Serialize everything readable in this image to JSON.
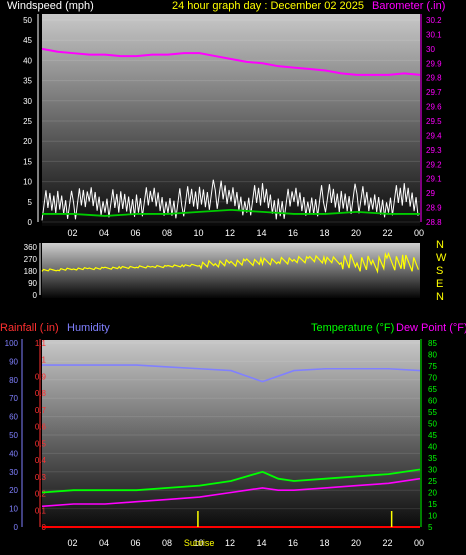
{
  "title": "24 hour graph day : December 02 2025",
  "colors": {
    "background": "#000000",
    "wind": "#ffffff",
    "wind_avg": "#00cc00",
    "barometer": "#ff00ff",
    "direction": "#ffff00",
    "rainfall": "#ff0000",
    "humidity": "#8080ff",
    "temperature": "#00ff00",
    "dewpoint": "#ff00ff",
    "title": "#ffff00"
  },
  "x_ticks": [
    "02",
    "04",
    "06",
    "08",
    "10",
    "12",
    "14",
    "16",
    "18",
    "20",
    "22",
    "00"
  ],
  "chart_data": [
    {
      "type": "line",
      "panel": "wind-barometer",
      "left_axis": {
        "label": "Windspeed (mph)",
        "ticks": [
          "0",
          "5",
          "10",
          "15",
          "20",
          "25",
          "30",
          "35",
          "40",
          "45",
          "50"
        ],
        "range": [
          0,
          50
        ]
      },
      "right_axis": {
        "label": "Barometer (.in)",
        "ticks": [
          "28.8",
          "28.9",
          "29",
          "29.1",
          "29.2",
          "29.3",
          "29.4",
          "29.5",
          "29.6",
          "29.7",
          "29.8",
          "29.9",
          "30",
          "30.1",
          "30.2"
        ],
        "range": [
          28.8,
          30.2
        ]
      },
      "series": [
        {
          "name": "Barometer (.in)",
          "x": [
            0,
            1,
            2,
            3,
            4,
            5,
            6,
            7,
            8,
            9,
            10,
            11,
            12,
            13,
            14,
            15,
            16,
            17,
            18,
            19,
            20,
            21,
            22,
            23,
            24
          ],
          "values": [
            30.0,
            29.98,
            29.97,
            29.96,
            29.96,
            29.95,
            29.95,
            29.96,
            29.96,
            29.97,
            29.97,
            29.95,
            29.93,
            29.91,
            29.9,
            29.88,
            29.87,
            29.86,
            29.85,
            29.83,
            29.82,
            29.82,
            29.82,
            29.83,
            29.82
          ]
        },
        {
          "x": [
            0,
            1,
            2,
            3,
            4,
            5,
            6,
            7,
            8,
            9,
            10,
            11,
            12,
            13,
            14,
            15,
            16,
            17,
            18,
            19,
            20,
            21,
            22,
            23,
            24
          ],
          "values": [
            4,
            5,
            4,
            6,
            5,
            4,
            5,
            5,
            4,
            5,
            6,
            7,
            6,
            5,
            6,
            4,
            5,
            4,
            6,
            5,
            6,
            4,
            5,
            6,
            5
          ]
        },
        {
          "x": [
            0,
            2,
            4,
            6,
            8,
            10,
            12,
            14,
            16,
            18,
            20,
            22,
            24
          ],
          "values": [
            2,
            2,
            1.5,
            2,
            2,
            2.5,
            3,
            2.5,
            2,
            2,
            2.5,
            2,
            2
          ]
        }
      ]
    },
    {
      "type": "scatter",
      "panel": "wind-direction",
      "left_axis": {
        "ticks": [
          "0",
          "90",
          "180",
          "270",
          "360"
        ],
        "range": [
          0,
          360
        ]
      },
      "right_labels": [
        "N",
        "W",
        "S",
        "E",
        "N"
      ],
      "series": [
        {
          "x": [
            0,
            1,
            2,
            3,
            4,
            5,
            6,
            7,
            8,
            9,
            10,
            11,
            12,
            13,
            14,
            15,
            16,
            17,
            18,
            19,
            20,
            21,
            22,
            23,
            24
          ],
          "values": [
            185,
            190,
            195,
            198,
            200,
            205,
            210,
            212,
            215,
            220,
            225,
            235,
            240,
            245,
            250,
            255,
            260,
            270,
            265,
            255,
            240,
            230,
            250,
            240,
            235
          ]
        }
      ]
    },
    {
      "type": "line",
      "panel": "temp-humidity-rain",
      "left_axis_humidity": {
        "label": "Humidity",
        "ticks": [
          "0",
          "10",
          "20",
          "30",
          "40",
          "50",
          "60",
          "70",
          "80",
          "90",
          "100"
        ],
        "range": [
          0,
          100
        ]
      },
      "left_axis_rain": {
        "label": "Rainfall (.in)",
        "ticks": [
          "0",
          "0.1",
          "0.2",
          "0.3",
          "0.4",
          "0.5",
          "0.6",
          "0.7",
          "0.8",
          "0.9",
          "1",
          "1.1"
        ],
        "range": [
          0,
          1.1
        ]
      },
      "right_axis": {
        "label_temperature": "Temperature (°F)",
        "label_dewpoint": "Dew Point (°F)",
        "ticks": [
          "5",
          "10",
          "15",
          "20",
          "25",
          "30",
          "35",
          "40",
          "45",
          "50",
          "55",
          "60",
          "65",
          "70",
          "75",
          "80",
          "85"
        ],
        "range": [
          5,
          85
        ]
      },
      "annotation": "Sunrise",
      "series": [
        {
          "name": "Humidity",
          "x": [
            0,
            2,
            4,
            6,
            8,
            10,
            12,
            13,
            14,
            15,
            16,
            18,
            20,
            22,
            24
          ],
          "values": [
            88,
            88,
            88,
            88,
            87,
            86,
            85,
            82,
            79,
            82,
            85,
            86,
            86,
            86,
            85
          ]
        },
        {
          "name": "Temperature (°F)",
          "x": [
            0,
            2,
            4,
            6,
            8,
            10,
            12,
            13,
            14,
            15,
            16,
            18,
            20,
            22,
            24
          ],
          "values": [
            20,
            21,
            21,
            21,
            22,
            23,
            25,
            27,
            29,
            26,
            25,
            26,
            27,
            28,
            30
          ]
        },
        {
          "name": "Dew Point (°F)",
          "x": [
            0,
            2,
            4,
            6,
            8,
            10,
            12,
            13,
            14,
            15,
            16,
            18,
            20,
            22,
            24
          ],
          "values": [
            14,
            15,
            15,
            16,
            17,
            18,
            20,
            21,
            22,
            21,
            21,
            22,
            23,
            24,
            26
          ]
        },
        {
          "name": "Rainfall (.in)",
          "x": [
            0,
            24
          ],
          "values": [
            0,
            0
          ]
        }
      ]
    }
  ]
}
